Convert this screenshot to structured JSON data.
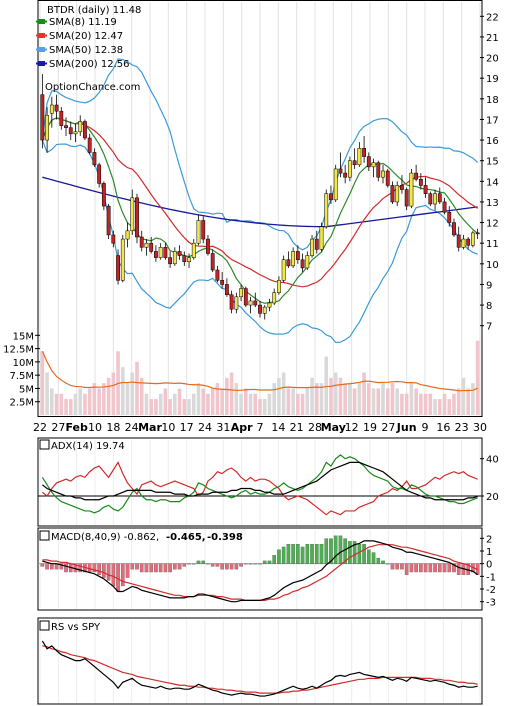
{
  "chart_data": {
    "type": "stock-technical",
    "ticker_line": "BTDR (daily) 11.48",
    "watermark": "OptionChance.com",
    "price_panel": {
      "legend": [
        {
          "label": "SMA(8) 11.19",
          "color": "#1a8a1a"
        },
        {
          "label": "SMA(20) 12.47",
          "color": "#e3342f"
        },
        {
          "label": "SMA(50) 12.38",
          "color": "#5aa0e0"
        },
        {
          "label": "SMA(200) 12.56",
          "color": "#1a1aa0"
        }
      ],
      "y_ticks": [
        "7",
        "8",
        "9",
        "10",
        "11",
        "12",
        "13",
        "14",
        "15",
        "16",
        "17",
        "18",
        "19",
        "20",
        "21",
        "22"
      ],
      "ylim": [
        6.5,
        22.5
      ],
      "bollinger_color": "#3b9ad9",
      "sma8_color": "#2d8a2d",
      "sma20_color": "#d22b2b",
      "sma200_color": "#18189a",
      "sma50_color": "#e6c22a",
      "up_color": "#f2e64a",
      "down_color": "#c22424",
      "candles": [
        [
          18.2,
          19.2,
          15.6,
          16.0
        ],
        [
          16.0,
          17.6,
          15.4,
          17.2
        ],
        [
          17.3,
          18.1,
          16.6,
          17.7
        ],
        [
          17.7,
          18.2,
          17.0,
          17.4
        ],
        [
          17.4,
          17.6,
          16.5,
          16.7
        ],
        [
          16.7,
          17.1,
          16.2,
          16.6
        ],
        [
          16.6,
          16.9,
          16.0,
          16.3
        ],
        [
          16.3,
          16.8,
          15.9,
          16.4
        ],
        [
          16.4,
          17.2,
          16.2,
          16.9
        ],
        [
          16.9,
          17.0,
          16.0,
          16.1
        ],
        [
          16.1,
          16.3,
          15.3,
          15.4
        ],
        [
          15.4,
          15.6,
          14.7,
          14.8
        ],
        [
          14.8,
          14.9,
          13.7,
          13.9
        ],
        [
          13.9,
          14.0,
          12.6,
          12.8
        ],
        [
          12.8,
          12.9,
          11.2,
          11.4
        ],
        [
          11.4,
          11.6,
          10.8,
          11.0
        ],
        [
          10.4,
          10.7,
          9.0,
          9.2
        ],
        [
          9.2,
          11.4,
          9.1,
          11.2
        ],
        [
          11.2,
          12.0,
          10.8,
          11.6
        ],
        [
          11.6,
          13.6,
          11.4,
          13.2
        ],
        [
          13.2,
          13.4,
          11.0,
          11.3
        ],
        [
          11.3,
          11.6,
          10.6,
          10.8
        ],
        [
          10.8,
          11.2,
          10.4,
          11.0
        ],
        [
          11.0,
          11.3,
          10.5,
          10.6
        ],
        [
          10.6,
          10.9,
          10.1,
          10.3
        ],
        [
          10.3,
          11.0,
          10.2,
          10.8
        ],
        [
          10.8,
          11.0,
          10.2,
          10.3
        ],
        [
          10.3,
          10.6,
          9.8,
          10.0
        ],
        [
          10.0,
          10.8,
          9.9,
          10.6
        ],
        [
          10.6,
          10.9,
          10.2,
          10.4
        ],
        [
          10.4,
          10.6,
          9.9,
          10.1
        ],
        [
          10.1,
          10.5,
          9.8,
          10.3
        ],
        [
          10.3,
          11.2,
          10.2,
          11.0
        ],
        [
          11.0,
          12.4,
          10.9,
          12.1
        ],
        [
          12.1,
          12.3,
          11.0,
          11.2
        ],
        [
          11.2,
          11.4,
          10.4,
          10.5
        ],
        [
          10.5,
          10.7,
          9.6,
          9.7
        ],
        [
          9.7,
          9.9,
          9.1,
          9.2
        ],
        [
          9.2,
          9.6,
          8.8,
          9.0
        ],
        [
          9.0,
          9.3,
          8.4,
          8.5
        ],
        [
          8.5,
          8.7,
          7.6,
          7.8
        ],
        [
          7.8,
          8.6,
          7.6,
          8.4
        ],
        [
          8.4,
          9.0,
          8.2,
          8.8
        ],
        [
          8.8,
          8.9,
          7.9,
          8.0
        ],
        [
          8.0,
          8.4,
          7.6,
          8.2
        ],
        [
          8.2,
          8.6,
          7.9,
          8.0
        ],
        [
          8.0,
          8.2,
          7.4,
          7.6
        ],
        [
          7.6,
          8.0,
          7.3,
          7.9
        ],
        [
          7.9,
          8.3,
          7.7,
          8.1
        ],
        [
          8.1,
          8.8,
          8.0,
          8.6
        ],
        [
          8.6,
          9.4,
          8.5,
          9.2
        ],
        [
          9.2,
          10.4,
          9.1,
          10.2
        ],
        [
          10.2,
          10.6,
          9.8,
          9.9
        ],
        [
          9.9,
          10.8,
          9.8,
          10.6
        ],
        [
          10.6,
          10.9,
          10.0,
          10.2
        ],
        [
          10.2,
          10.5,
          9.6,
          9.8
        ],
        [
          9.8,
          10.6,
          9.7,
          10.4
        ],
        [
          10.4,
          11.4,
          10.3,
          11.2
        ],
        [
          11.2,
          11.6,
          10.5,
          10.7
        ],
        [
          10.7,
          12.0,
          10.6,
          11.8
        ],
        [
          11.8,
          13.6,
          11.7,
          13.4
        ],
        [
          13.4,
          13.8,
          12.9,
          13.1
        ],
        [
          13.1,
          14.8,
          13.0,
          14.6
        ],
        [
          14.6,
          15.4,
          14.2,
          14.4
        ],
        [
          14.4,
          14.8,
          13.9,
          14.2
        ],
        [
          14.2,
          15.2,
          14.0,
          15.0
        ],
        [
          15.0,
          15.6,
          14.6,
          14.8
        ],
        [
          14.8,
          15.9,
          14.7,
          15.6
        ],
        [
          15.6,
          16.2,
          14.9,
          15.2
        ],
        [
          15.2,
          15.4,
          14.5,
          14.7
        ],
        [
          14.7,
          15.1,
          14.2,
          14.9
        ],
        [
          14.9,
          15.0,
          14.0,
          14.2
        ],
        [
          14.2,
          14.8,
          13.9,
          14.5
        ],
        [
          14.5,
          14.6,
          13.7,
          13.8
        ],
        [
          13.8,
          14.0,
          12.9,
          13.0
        ],
        [
          13.0,
          14.0,
          12.8,
          13.8
        ],
        [
          13.8,
          14.3,
          13.4,
          13.6
        ],
        [
          13.6,
          13.7,
          12.6,
          12.8
        ],
        [
          12.8,
          14.6,
          12.7,
          14.4
        ],
        [
          14.4,
          14.8,
          14.0,
          14.1
        ],
        [
          14.1,
          14.4,
          13.6,
          13.8
        ],
        [
          13.8,
          14.2,
          13.2,
          13.4
        ],
        [
          13.4,
          13.5,
          12.8,
          12.9
        ],
        [
          12.9,
          13.6,
          12.6,
          13.4
        ],
        [
          13.4,
          13.7,
          12.9,
          13.0
        ],
        [
          13.0,
          13.2,
          12.4,
          12.5
        ],
        [
          12.5,
          12.8,
          11.8,
          12.0
        ],
        [
          12.0,
          12.2,
          11.3,
          11.4
        ],
        [
          11.4,
          11.8,
          10.6,
          10.8
        ],
        [
          10.8,
          11.4,
          10.7,
          11.2
        ],
        [
          11.2,
          11.3,
          10.7,
          10.9
        ],
        [
          10.9,
          11.6,
          10.8,
          11.5
        ],
        [
          11.5,
          11.7,
          11.2,
          11.48
        ]
      ]
    },
    "volume_panel": {
      "y_ticks": [
        "2.5M",
        "5M",
        "7.5M",
        "10M",
        "12.5M",
        "15M"
      ],
      "ylim": [
        0,
        16
      ],
      "bar_color": "#f0c6cc",
      "bar_alt_color": "#d9d9d9",
      "avg_color": "#e36b1f",
      "values": [
        12,
        8,
        5,
        4,
        4,
        3,
        3,
        4,
        5,
        4,
        5,
        6,
        5,
        6,
        7,
        8,
        12,
        9,
        6,
        8,
        10,
        7,
        4,
        3,
        3,
        4,
        5,
        3,
        4,
        5,
        3,
        3,
        4,
        6,
        5,
        4,
        5,
        6,
        5,
        7,
        8,
        6,
        4,
        5,
        4,
        4,
        3,
        3,
        4,
        6,
        7,
        8,
        5,
        5,
        4,
        4,
        5,
        7,
        6,
        6,
        11,
        7,
        8,
        7,
        6,
        6,
        5,
        6,
        8,
        6,
        5,
        5,
        6,
        5,
        6,
        5,
        4,
        4,
        6,
        5,
        4,
        4,
        4,
        3,
        3,
        4,
        3,
        4,
        5,
        7,
        5,
        6,
        14
      ]
    },
    "x_labels": [
      "22",
      "27",
      "Feb",
      "10",
      "18",
      "24",
      "Mar",
      "10",
      "17",
      "24",
      "31",
      "Apr",
      "7",
      "14",
      "21",
      "28",
      "May",
      "12",
      "19",
      "27",
      "Jun",
      "9",
      "16",
      "23",
      "30"
    ],
    "adx_panel": {
      "label": "ADX(14) 19.74",
      "y_ticks": [
        "20",
        "40"
      ],
      "ylim": [
        5,
        50
      ],
      "adx_color": "#000000",
      "plus_di_color": "#1a8a1a",
      "minus_di_color": "#d22b2b",
      "adx": [
        26,
        24,
        23,
        22,
        21,
        20,
        20,
        19,
        19,
        18,
        18,
        18,
        18,
        19,
        20,
        20,
        21,
        22,
        23,
        23,
        23,
        23,
        23,
        23,
        22,
        22,
        22,
        22,
        21,
        21,
        21,
        20,
        20,
        21,
        21,
        21,
        22,
        22,
        22,
        22,
        23,
        23,
        24,
        24,
        24,
        23,
        23,
        22,
        22,
        21,
        21,
        21,
        22,
        23,
        24,
        25,
        26,
        27,
        28,
        30,
        32,
        34,
        35,
        36,
        37,
        38,
        38,
        38,
        37,
        36,
        35,
        34,
        33,
        31,
        29,
        27,
        25,
        23,
        22,
        21,
        20,
        19,
        19,
        18,
        18,
        18,
        18,
        18,
        18,
        18,
        19,
        19,
        19.74
      ],
      "plus_di": [
        30,
        26,
        22,
        19,
        17,
        16,
        15,
        14,
        13,
        12,
        12,
        11,
        12,
        14,
        15,
        13,
        12,
        14,
        18,
        22,
        24,
        20,
        18,
        18,
        17,
        18,
        18,
        17,
        17,
        17,
        19,
        20,
        22,
        27,
        26,
        24,
        23,
        22,
        21,
        20,
        19,
        20,
        22,
        23,
        21,
        22,
        21,
        21,
        22,
        24,
        25,
        27,
        25,
        24,
        23,
        24,
        26,
        28,
        30,
        33,
        38,
        36,
        40,
        42,
        40,
        41,
        40,
        38,
        36,
        33,
        31,
        30,
        29,
        28,
        25,
        24,
        24,
        23,
        26,
        25,
        23,
        21,
        20,
        20,
        19,
        18,
        17,
        17,
        16,
        16,
        17,
        18,
        19
      ],
      "minus_di": [
        22,
        20,
        24,
        27,
        28,
        29,
        28,
        30,
        31,
        30,
        33,
        35,
        36,
        33,
        30,
        34,
        38,
        32,
        27,
        24,
        21,
        26,
        27,
        28,
        26,
        25,
        26,
        27,
        28,
        27,
        26,
        25,
        24,
        20,
        22,
        28,
        30,
        33,
        32,
        34,
        35,
        33,
        30,
        28,
        30,
        28,
        29,
        29,
        28,
        26,
        24,
        20,
        18,
        19,
        20,
        19,
        18,
        16,
        14,
        12,
        10,
        12,
        11,
        10,
        12,
        12,
        12,
        14,
        15,
        16,
        17,
        20,
        21,
        22,
        24,
        23,
        25,
        28,
        24,
        24,
        25,
        26,
        28,
        30,
        29,
        31,
        32,
        33,
        32,
        33,
        31,
        30,
        29
      ]
    },
    "macd_panel": {
      "label": "MACD(8,40,9) -0.862,",
      "signal_label": "-0.465,",
      "hist_label": "-0.398",
      "signal_label_color": "#e01010",
      "hist_label_color": "#2a5bd7",
      "y_ticks": [
        "2",
        "1",
        "0",
        "-1",
        "-2",
        "-3"
      ],
      "ylim": [
        -3.5,
        2.5
      ],
      "macd": [
        0.2,
        0.1,
        0.0,
        0.0,
        -0.1,
        -0.2,
        -0.3,
        -0.4,
        -0.5,
        -0.6,
        -0.7,
        -0.8,
        -1.0,
        -1.2,
        -1.5,
        -1.8,
        -2.2,
        -2.2,
        -2.0,
        -1.8,
        -1.9,
        -2.1,
        -2.2,
        -2.3,
        -2.4,
        -2.5,
        -2.6,
        -2.7,
        -2.7,
        -2.7,
        -2.7,
        -2.6,
        -2.6,
        -2.4,
        -2.4,
        -2.5,
        -2.6,
        -2.7,
        -2.8,
        -2.9,
        -3.0,
        -3.0,
        -2.9,
        -2.9,
        -2.9,
        -2.9,
        -2.9,
        -2.8,
        -2.7,
        -2.5,
        -2.2,
        -1.9,
        -1.7,
        -1.5,
        -1.4,
        -1.3,
        -1.1,
        -0.9,
        -0.7,
        -0.5,
        -0.1,
        0.2,
        0.6,
        0.9,
        1.1,
        1.3,
        1.5,
        1.6,
        1.8,
        1.8,
        1.8,
        1.7,
        1.6,
        1.5,
        1.3,
        1.2,
        1.1,
        0.9,
        0.9,
        0.8,
        0.7,
        0.6,
        0.5,
        0.4,
        0.3,
        0.2,
        0.1,
        -0.1,
        -0.3,
        -0.4,
        -0.5,
        -0.6,
        -0.862
      ],
      "signal": [
        0.3,
        0.3,
        0.2,
        0.2,
        0.1,
        0.1,
        0.0,
        -0.1,
        -0.2,
        -0.3,
        -0.4,
        -0.5,
        -0.6,
        -0.7,
        -0.9,
        -1.0,
        -1.2,
        -1.4,
        -1.5,
        -1.6,
        -1.7,
        -1.8,
        -1.9,
        -2.0,
        -2.1,
        -2.2,
        -2.3,
        -2.4,
        -2.5,
        -2.5,
        -2.6,
        -2.6,
        -2.6,
        -2.5,
        -2.5,
        -2.5,
        -2.5,
        -2.6,
        -2.6,
        -2.7,
        -2.8,
        -2.8,
        -2.8,
        -2.9,
        -2.9,
        -2.9,
        -2.9,
        -2.9,
        -2.8,
        -2.8,
        -2.7,
        -2.5,
        -2.4,
        -2.2,
        -2.1,
        -1.9,
        -1.8,
        -1.6,
        -1.4,
        -1.2,
        -1.0,
        -0.7,
        -0.4,
        -0.1,
        0.2,
        0.5,
        0.7,
        0.9,
        1.1,
        1.3,
        1.4,
        1.5,
        1.5,
        1.5,
        1.5,
        1.4,
        1.3,
        1.3,
        1.2,
        1.1,
        1.0,
        0.9,
        0.8,
        0.7,
        0.6,
        0.5,
        0.4,
        0.2,
        0.1,
        0.0,
        -0.1,
        -0.3,
        -0.465
      ],
      "hist_pos_color": "#4caf50",
      "hist_neg_color": "#e66b7a"
    },
    "rs_panel": {
      "label": "RS vs SPY",
      "rs_color": "#000000",
      "ma_color": "#d22b2b",
      "rs": [
        1.0,
        0.92,
        0.95,
        0.9,
        0.86,
        0.84,
        0.82,
        0.8,
        0.8,
        0.82,
        0.78,
        0.74,
        0.7,
        0.66,
        0.62,
        0.58,
        0.52,
        0.58,
        0.6,
        0.62,
        0.58,
        0.55,
        0.54,
        0.53,
        0.52,
        0.54,
        0.52,
        0.51,
        0.52,
        0.52,
        0.51,
        0.51,
        0.53,
        0.56,
        0.54,
        0.52,
        0.5,
        0.49,
        0.47,
        0.46,
        0.45,
        0.46,
        0.47,
        0.46,
        0.46,
        0.45,
        0.44,
        0.44,
        0.45,
        0.46,
        0.48,
        0.5,
        0.52,
        0.54,
        0.52,
        0.51,
        0.52,
        0.54,
        0.52,
        0.55,
        0.58,
        0.6,
        0.64,
        0.65,
        0.64,
        0.66,
        0.67,
        0.68,
        0.66,
        0.65,
        0.64,
        0.63,
        0.64,
        0.62,
        0.6,
        0.62,
        0.61,
        0.59,
        0.63,
        0.62,
        0.61,
        0.6,
        0.59,
        0.6,
        0.59,
        0.58,
        0.56,
        0.55,
        0.53,
        0.54,
        0.53,
        0.53,
        0.54
      ],
      "ma": [
        0.95,
        0.94,
        0.92,
        0.91,
        0.89,
        0.88,
        0.86,
        0.85,
        0.84,
        0.83,
        0.81,
        0.8,
        0.78,
        0.76,
        0.74,
        0.72,
        0.7,
        0.68,
        0.67,
        0.66,
        0.64,
        0.63,
        0.62,
        0.61,
        0.6,
        0.59,
        0.58,
        0.57,
        0.56,
        0.55,
        0.55,
        0.54,
        0.54,
        0.53,
        0.53,
        0.52,
        0.52,
        0.51,
        0.51,
        0.5,
        0.5,
        0.49,
        0.49,
        0.48,
        0.48,
        0.48,
        0.47,
        0.47,
        0.47,
        0.47,
        0.47,
        0.48,
        0.48,
        0.49,
        0.49,
        0.5,
        0.5,
        0.51,
        0.52,
        0.53,
        0.54,
        0.55,
        0.56,
        0.57,
        0.58,
        0.59,
        0.6,
        0.61,
        0.61,
        0.62,
        0.62,
        0.62,
        0.63,
        0.63,
        0.63,
        0.63,
        0.63,
        0.63,
        0.63,
        0.63,
        0.62,
        0.62,
        0.62,
        0.61,
        0.61,
        0.6,
        0.6,
        0.59,
        0.58,
        0.58,
        0.57,
        0.57,
        0.56
      ]
    }
  }
}
